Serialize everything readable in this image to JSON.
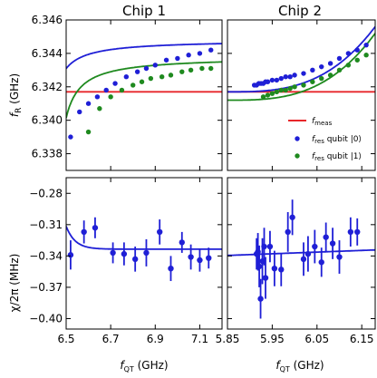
{
  "chart_data": [
    {
      "type": "scatter",
      "title": "Chip 1",
      "ylabel": "f_R (GHz)",
      "ylim": [
        6.337,
        6.346
      ],
      "xlim": [
        6.5,
        7.2
      ],
      "yticks": [
        "6.338",
        "6.340",
        "6.342",
        "6.344",
        "6.346"
      ],
      "yticks_values": [
        6.338,
        6.34,
        6.342,
        6.344,
        6.346
      ],
      "xticks_values": [
        6.5,
        6.7,
        6.9,
        7.1
      ],
      "hline": {
        "name": "f_meas",
        "y": 6.3417,
        "color": "#e8262a"
      },
      "series": [
        {
          "name": "f_res qubit |0⟩",
          "color": "#1f1fd6",
          "x": [
            6.52,
            6.56,
            6.6,
            6.64,
            6.68,
            6.72,
            6.77,
            6.82,
            6.86,
            6.9,
            6.95,
            7.0,
            7.05,
            7.1,
            7.15
          ],
          "y": [
            6.339,
            6.3405,
            6.341,
            6.3414,
            6.3418,
            6.3422,
            6.3426,
            6.3429,
            6.3431,
            6.3433,
            6.3436,
            6.3437,
            6.3439,
            6.344,
            6.3442
          ]
        },
        {
          "name": "f_res qubit |1⟩",
          "color": "#1f8a1f",
          "x": [
            6.6,
            6.65,
            6.7,
            6.75,
            6.8,
            6.84,
            6.88,
            6.93,
            6.97,
            7.02,
            7.06,
            7.11,
            7.15
          ],
          "y": [
            6.3393,
            6.3407,
            6.3414,
            6.3418,
            6.3421,
            6.3423,
            6.3425,
            6.3426,
            6.3427,
            6.3429,
            6.343,
            6.3431,
            6.3431
          ]
        }
      ],
      "fits": [
        {
          "color": "#1f1fd6",
          "ymin": 6.3393,
          "yinf": 6.3448,
          "x0": 6.43,
          "k": 0.09
        },
        {
          "color": "#1f8a1f",
          "ymin": 6.337,
          "yinf": 6.3438,
          "x0": 6.47,
          "k": 0.1
        }
      ]
    },
    {
      "type": "scatter",
      "title": "Chip 2",
      "ylim": [
        6.337,
        6.346
      ],
      "xlim": [
        5.85,
        6.18
      ],
      "yticks_values": [
        6.338,
        6.34,
        6.342,
        6.344,
        6.346
      ],
      "xticks_values": [
        5.85,
        5.95,
        6.05,
        6.15
      ],
      "hline": {
        "name": "f_meas",
        "y": 6.3417,
        "color": "#e8262a"
      },
      "series": [
        {
          "name": "f_res qubit |0⟩",
          "color": "#1f1fd6",
          "x": [
            5.91,
            5.915,
            5.92,
            5.925,
            5.93,
            5.935,
            5.94,
            5.95,
            5.96,
            5.97,
            5.98,
            5.99,
            6.0,
            6.02,
            6.04,
            6.06,
            6.08,
            6.1,
            6.12,
            6.14,
            6.16
          ],
          "y": [
            6.3421,
            6.3421,
            6.3422,
            6.3422,
            6.3422,
            6.3423,
            6.3423,
            6.3424,
            6.3424,
            6.3425,
            6.3426,
            6.3426,
            6.3427,
            6.3428,
            6.343,
            6.3432,
            6.3434,
            6.3437,
            6.344,
            6.3442,
            6.3445
          ]
        },
        {
          "name": "f_res qubit |1⟩",
          "color": "#1f8a1f",
          "x": [
            5.93,
            5.94,
            5.95,
            5.96,
            5.97,
            5.98,
            5.99,
            6.0,
            6.02,
            6.04,
            6.06,
            6.08,
            6.1,
            6.12,
            6.14,
            6.16
          ],
          "y": [
            6.3414,
            6.3415,
            6.3416,
            6.3417,
            6.3418,
            6.3418,
            6.3419,
            6.342,
            6.3421,
            6.3423,
            6.3425,
            6.3427,
            6.343,
            6.3433,
            6.3436,
            6.3439
          ]
        }
      ],
      "fits": [
        {
          "color": "#1f1fd6",
          "ymin": 6.3417,
          "yinf": 6.3456,
          "x0": 5.85,
          "k": 0.12,
          "pow": 3
        },
        {
          "color": "#1f8a1f",
          "ymin": 6.3412,
          "yinf": 6.3452,
          "x0": 5.85,
          "k": 0.12,
          "pow": 3
        }
      ],
      "legend": {
        "placement": "lower-right",
        "entries": [
          {
            "label": "f_meas",
            "kind": "line",
            "color": "#e8262a"
          },
          {
            "label": "f_res qubit |0⟩",
            "kind": "dot",
            "color": "#1f1fd6"
          },
          {
            "label": "f_res qubit |1⟩",
            "kind": "dot",
            "color": "#1f8a1f"
          }
        ]
      }
    },
    {
      "type": "scatter",
      "xlabel": "f_QT  (GHz)",
      "ylabel": "χ/2π (MHz)",
      "ylim": [
        -0.41,
        -0.265
      ],
      "xlim": [
        6.5,
        7.2
      ],
      "yticks": [
        "-0.28",
        "-0.31",
        "-0.34",
        "-0.37",
        "-0.40"
      ],
      "yticks_values": [
        -0.28,
        -0.31,
        -0.34,
        -0.37,
        -0.4
      ],
      "xticks": [
        "6.5",
        "6.7",
        "6.9",
        "7.1"
      ],
      "xticks_values": [
        6.5,
        6.7,
        6.9,
        7.1
      ],
      "series": [
        {
          "name": "chi",
          "color": "#1f1fd6",
          "x": [
            6.52,
            6.58,
            6.63,
            6.71,
            6.76,
            6.81,
            6.86,
            6.92,
            6.97,
            7.02,
            7.06,
            7.1,
            7.14
          ],
          "y": [
            -0.339,
            -0.317,
            -0.313,
            -0.337,
            -0.338,
            -0.343,
            -0.337,
            -0.317,
            -0.352,
            -0.327,
            -0.341,
            -0.344,
            -0.342
          ],
          "err": [
            0.014,
            0.011,
            0.01,
            0.01,
            0.011,
            0.012,
            0.013,
            0.012,
            0.012,
            0.01,
            0.012,
            0.011,
            0.01
          ]
        }
      ],
      "fits": [
        {
          "color": "#1f1fd6",
          "yinf": -0.3335,
          "amp": 0.022,
          "x0": 6.5,
          "k": 0.04
        }
      ]
    },
    {
      "type": "scatter",
      "xlabel": "f_QT  (GHz)",
      "ylim": [
        -0.41,
        -0.265
      ],
      "xlim": [
        5.85,
        6.18
      ],
      "xticks": [
        "5.85",
        "5.95",
        "6.05",
        "6.15"
      ],
      "xticks_values": [
        5.85,
        5.95,
        6.05,
        6.15
      ],
      "yticks_values": [
        -0.28,
        -0.31,
        -0.34,
        -0.37,
        -0.4
      ],
      "series": [
        {
          "name": "chi",
          "color": "#1f1fd6",
          "x": [
            5.915,
            5.918,
            5.921,
            5.924,
            5.928,
            5.932,
            5.935,
            5.945,
            5.955,
            5.97,
            5.985,
            5.995,
            6.02,
            6.03,
            6.045,
            6.06,
            6.07,
            6.085,
            6.1,
            6.125,
            6.14
          ],
          "y": [
            -0.338,
            -0.336,
            -0.35,
            -0.381,
            -0.345,
            -0.331,
            -0.361,
            -0.331,
            -0.352,
            -0.353,
            -0.317,
            -0.303,
            -0.343,
            -0.338,
            -0.331,
            -0.346,
            -0.322,
            -0.328,
            -0.341,
            -0.317,
            -0.317
          ],
          "err": [
            0.015,
            0.018,
            0.02,
            0.019,
            0.022,
            0.018,
            0.02,
            0.015,
            0.017,
            0.016,
            0.019,
            0.017,
            0.016,
            0.017,
            0.016,
            0.014,
            0.014,
            0.015,
            0.016,
            0.014,
            0.013
          ]
        }
      ],
      "fits": [
        {
          "color": "#1f1fd6",
          "linear": [
            -0.3395,
            0.016
          ],
          "x0": 5.85
        }
      ]
    }
  ],
  "colors": {
    "blue": "#1f1fd6",
    "green": "#1f8a1f",
    "red": "#e8262a"
  }
}
